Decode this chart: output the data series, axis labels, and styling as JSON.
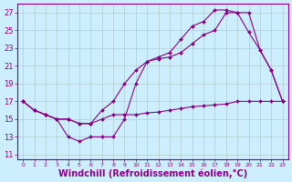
{
  "background_color": "#cceeff",
  "line_color": "#880088",
  "grid_color": "#aaddcc",
  "xlabel": "Windchill (Refroidissement éolien,°C)",
  "xlabel_fontsize": 7,
  "ylabel_ticks": [
    11,
    13,
    15,
    17,
    19,
    21,
    23,
    25,
    27
  ],
  "xlim": [
    -0.5,
    23.5
  ],
  "ylim": [
    10.5,
    28.0
  ],
  "line1_x": [
    0,
    1,
    2,
    3,
    4,
    5,
    6,
    7,
    8,
    9,
    10,
    11,
    12,
    13,
    14,
    15,
    16,
    17,
    18,
    19,
    20,
    21,
    22,
    23
  ],
  "line1_y": [
    17.0,
    16.0,
    15.5,
    15.0,
    15.0,
    14.5,
    14.5,
    15.0,
    15.5,
    15.5,
    15.5,
    15.7,
    15.8,
    16.0,
    16.2,
    16.4,
    16.5,
    16.6,
    16.7,
    17.0,
    17.0,
    17.0,
    17.0,
    17.0
  ],
  "line2_x": [
    0,
    1,
    2,
    3,
    4,
    5,
    6,
    7,
    8,
    9,
    10,
    11,
    12,
    13,
    14,
    15,
    16,
    17,
    18,
    19,
    20,
    21,
    22,
    23
  ],
  "line2_y": [
    17.0,
    16.0,
    15.5,
    15.0,
    15.0,
    14.5,
    14.5,
    16.0,
    17.0,
    19.0,
    20.5,
    21.5,
    21.8,
    22.0,
    22.5,
    23.5,
    24.5,
    25.0,
    27.0,
    27.0,
    24.8,
    22.8,
    20.5,
    17.0
  ],
  "line3_x": [
    0,
    1,
    2,
    3,
    4,
    5,
    6,
    7,
    8,
    9,
    10,
    11,
    12,
    13,
    14,
    15,
    16,
    17,
    18,
    19,
    20,
    21,
    22,
    23
  ],
  "line3_y": [
    17.0,
    16.0,
    15.5,
    15.0,
    13.0,
    12.5,
    13.0,
    13.0,
    13.0,
    15.0,
    19.0,
    21.5,
    22.0,
    22.5,
    24.0,
    25.5,
    26.0,
    27.3,
    27.3,
    27.0,
    27.0,
    22.8,
    20.5,
    17.0
  ]
}
